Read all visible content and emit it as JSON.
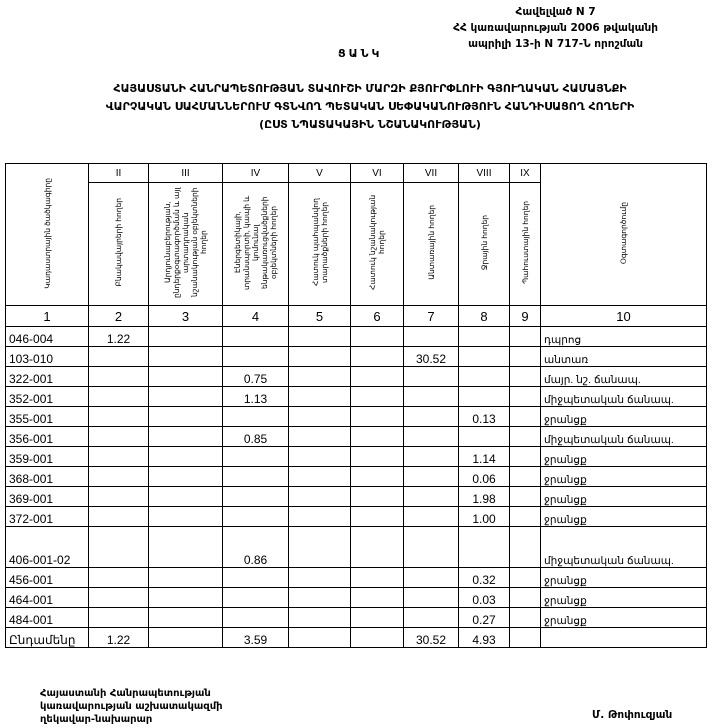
{
  "annex": {
    "line1": "Հավելված N 7",
    "line2": "ՀՀ կառավարության 2006 թվականի",
    "line3": "ապրիլի 13-ի N 717-Ն որոշման"
  },
  "list_title": "ՑԱՆԿ",
  "title": {
    "line1": "ՀԱՅԱՍՏԱՆԻ ՀԱՆՐԱՊԵՏՈՒԹՅԱՆ ՏԱՎՈՒՇԻ ՄԱՐԶԻ ՔՅՈՒՐՓԼՈՒԻ ԳՅՈՒՂԱԿԱՆ ՀԱՄԱՅՆՔԻ",
    "line2": "ՎԱՐՉԱԿԱՆ ՍԱՀՄԱՆՆԵՐՈՒՄ ԳՏՆՎՈՂ ՊԵՏԱԿԱՆ ՍԵՓԱԿԱՆՈՒԹՅՈՒՆ ՀԱՆԴԻՍԱՑՈՂ ՀՈՂԵՐԻ",
    "line3": "(ԸՍՏ ՆՊԱՏԱԿԱՅԻՆ ՆՇԱՆԱԿՈՒԹՅԱՆ)"
  },
  "table": {
    "roman": [
      "",
      "II",
      "III",
      "IV",
      "V",
      "VI",
      "VII",
      "VIII",
      "IX",
      ""
    ],
    "headers": [
      "Կադաստրային ծածկագիրը",
      "Բնակավայրերի հողեր",
      "Արդյունաբերության, ընդերքօգտագործման և այլ արտադրական նշանակության օբյեկտների հողեր",
      "Էներգետիկայի, տրանսպորտի, կապի և կոմունալ ենթակառուցվածքների օբյեկտների հողեր",
      "Հատուկ պահպանվող տարածքների հողեր",
      "Հատուկ նշանակության հողեր",
      "Անտառային հողեր",
      "Ջրային հողեր",
      "Պահուստային հողեր",
      "Օգտագործումը"
    ],
    "numbers": [
      "1",
      "2",
      "3",
      "4",
      "5",
      "6",
      "7",
      "8",
      "9",
      "10"
    ],
    "rows": [
      [
        "046-004",
        "1.22",
        "",
        "",
        "",
        "",
        "",
        "",
        "",
        "դպրոց"
      ],
      [
        "103-010",
        "",
        "",
        "",
        "",
        "",
        "30.52",
        "",
        "",
        "անտառ"
      ],
      [
        "322-001",
        "",
        "",
        "0.75",
        "",
        "",
        "",
        "",
        "",
        "մայր. նշ. ճանապ."
      ],
      [
        "352-001",
        "",
        "",
        "1.13",
        "",
        "",
        "",
        "",
        "",
        "միջպետական ճանապ."
      ],
      [
        "355-001",
        "",
        "",
        "",
        "",
        "",
        "",
        "0.13",
        "",
        "ջրանցք"
      ],
      [
        "356-001",
        "",
        "",
        "0.85",
        "",
        "",
        "",
        "",
        "",
        "միջպետական ճանապ."
      ],
      [
        "359-001",
        "",
        "",
        "",
        "",
        "",
        "",
        "1.14",
        "",
        "ջրանցք"
      ],
      [
        "368-001",
        "",
        "",
        "",
        "",
        "",
        "",
        "0.06",
        "",
        "ջրանցք"
      ],
      [
        "369-001",
        "",
        "",
        "",
        "",
        "",
        "",
        "1.98",
        "",
        "ջրանցք"
      ],
      [
        "372-001",
        "",
        "",
        "",
        "",
        "",
        "",
        "1.00",
        "",
        "ջրանցք"
      ],
      [
        "406-001-02",
        "",
        "",
        "0.86",
        "",
        "",
        "",
        "",
        "",
        "միջպետական ճանապ."
      ],
      [
        "456-001",
        "",
        "",
        "",
        "",
        "",
        "",
        "0.32",
        "",
        "ջրանցք"
      ],
      [
        "464-001",
        "",
        "",
        "",
        "",
        "",
        "",
        "0.03",
        "",
        "ջրանցք"
      ],
      [
        "484-001",
        "",
        "",
        "",
        "",
        "",
        "",
        "0.27",
        "",
        "ջրանցք"
      ]
    ],
    "total": [
      "Ընդամենը",
      "1.22",
      "",
      "3.59",
      "",
      "",
      "30.52",
      "4.93",
      "",
      ""
    ]
  },
  "footer": {
    "line1": "Հայաստանի Հանրապետության",
    "line2": "կառավարության աշխատակազմի",
    "line3": "ղեկավար-նախարար",
    "signatory": "Մ. Թոփուզյան"
  }
}
